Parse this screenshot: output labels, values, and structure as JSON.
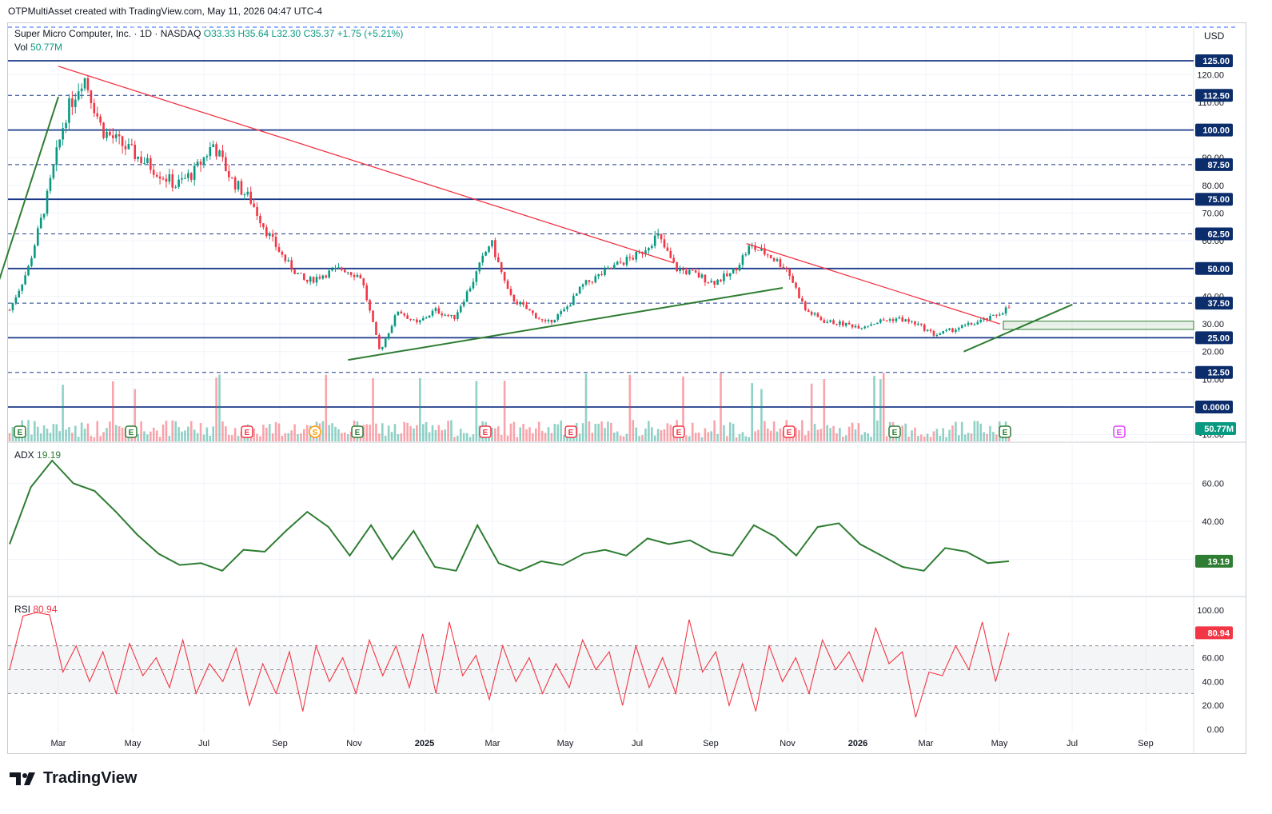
{
  "credit": "OTPMultiAsset created with TradingView.com, May 11, 2026 04:47 UTC-4",
  "logo_text": "TradingView",
  "legend": {
    "symbol": "Super Micro Computer, Inc. · 1D · NASDAQ",
    "open": "O33.33",
    "high": "H35.64",
    "low": "L32.30",
    "close": "C35.37",
    "change": "+1.75 (+5.21%)",
    "vol_label": "Vol",
    "vol_value": "50.77M"
  },
  "currency": "USD",
  "adx": {
    "label": "ADX",
    "value": "19.19"
  },
  "rsi": {
    "label": "RSI",
    "value": "80.94"
  },
  "chart_data": [
    {
      "type": "candlestick",
      "id": "price",
      "ylim": [
        -10,
        135
      ],
      "price_ticks": [
        120,
        110,
        90,
        80,
        70,
        60,
        40,
        30,
        20,
        10,
        -10
      ],
      "levels": [
        {
          "value": 125,
          "label": "125.00",
          "style": "solid"
        },
        {
          "value": 112.5,
          "label": "112.50",
          "style": "dashed"
        },
        {
          "value": 100,
          "label": "100.00",
          "style": "solid"
        },
        {
          "value": 87.5,
          "label": "87.50",
          "style": "dashed"
        },
        {
          "value": 75,
          "label": "75.00",
          "style": "solid"
        },
        {
          "value": 62.5,
          "label": "62.50",
          "style": "dashed"
        },
        {
          "value": 50,
          "label": "50.00",
          "style": "solid"
        },
        {
          "value": 37.5,
          "label": "37.50",
          "style": "dashed"
        },
        {
          "value": 25,
          "label": "25.00",
          "style": "solid"
        },
        {
          "value": 12.5,
          "label": "12.50",
          "style": "dashed"
        },
        {
          "value": 0,
          "label": "0.0000",
          "style": "solid"
        }
      ],
      "last_volume_label": "50.77M",
      "x_ticks": [
        "Mar",
        "May",
        "Jul",
        "Sep",
        "Nov",
        "2025",
        "Mar",
        "May",
        "Jul",
        "Sep",
        "Nov",
        "2026",
        "Mar",
        "May",
        "Jul",
        "Sep"
      ],
      "events": [
        "E",
        "E",
        "E",
        "S",
        "E",
        "E",
        "E",
        "E",
        "E",
        "E",
        "E",
        "E"
      ],
      "close_series": [
        35,
        50,
        75,
        105,
        120,
        100,
        95,
        90,
        85,
        80,
        85,
        95,
        82,
        75,
        62,
        52,
        45,
        48,
        50,
        47,
        20,
        35,
        30,
        35,
        32,
        45,
        60,
        40,
        35,
        30,
        35,
        44,
        48,
        52,
        55,
        62,
        50,
        48,
        45,
        48,
        58,
        55,
        50,
        35,
        31,
        30,
        29,
        31,
        32,
        30,
        26,
        28,
        30,
        32,
        36
      ],
      "trendlines": [
        {
          "color": "#f23645",
          "from": [
            "2024-03",
            123
          ],
          "to": [
            "2025-08",
            52
          ]
        },
        {
          "color": "#f23645",
          "from": [
            "2025-10",
            59
          ],
          "to": [
            "2026-05",
            30
          ]
        },
        {
          "color": "#2e7d32",
          "from": [
            "2024-01",
            31
          ],
          "to": [
            "2024-03",
            112
          ]
        },
        {
          "color": "#2e7d32",
          "from": [
            "2024-11",
            17
          ],
          "to": [
            "2025-11",
            43
          ]
        },
        {
          "color": "#2e7d32",
          "from": [
            "2026-04",
            20
          ],
          "to": [
            "2026-07",
            37
          ]
        }
      ]
    },
    {
      "type": "line",
      "id": "adx",
      "name": "ADX",
      "ylim": [
        0,
        80
      ],
      "y_ticks": [
        60,
        40,
        20
      ],
      "y_tick_labels": [
        "60.00",
        "40.00"
      ],
      "values": [
        28,
        58,
        72,
        60,
        56,
        45,
        33,
        23,
        17,
        18,
        14,
        25,
        24,
        35,
        45,
        37,
        22,
        38,
        20,
        35,
        16,
        14,
        38,
        18,
        14,
        19,
        17,
        23,
        25,
        22,
        31,
        28,
        30,
        24,
        22,
        38,
        32,
        22,
        37,
        39,
        28,
        22,
        16,
        14,
        26,
        24,
        18,
        19
      ]
    },
    {
      "type": "line",
      "id": "rsi",
      "name": "RSI",
      "ylim": [
        -5,
        110
      ],
      "y_ticks": [
        100,
        80,
        60,
        40,
        20,
        0
      ],
      "y_tick_labels": [
        "100.00",
        "60.00",
        "40.00",
        "20.00",
        "0.00"
      ],
      "bands": [
        70,
        50,
        30
      ],
      "values": [
        50,
        95,
        98,
        96,
        48,
        70,
        40,
        65,
        30,
        72,
        45,
        60,
        35,
        75,
        30,
        55,
        40,
        68,
        20,
        55,
        30,
        65,
        15,
        70,
        40,
        60,
        30,
        75,
        45,
        70,
        35,
        80,
        30,
        90,
        45,
        62,
        25,
        70,
        40,
        60,
        30,
        55,
        35,
        75,
        50,
        65,
        20,
        70,
        35,
        60,
        30,
        92,
        48,
        65,
        20,
        55,
        15,
        70,
        40,
        60,
        30,
        75,
        50,
        65,
        40,
        85,
        55,
        65,
        10,
        48,
        45,
        70,
        50,
        90,
        40,
        80.94
      ]
    }
  ]
}
